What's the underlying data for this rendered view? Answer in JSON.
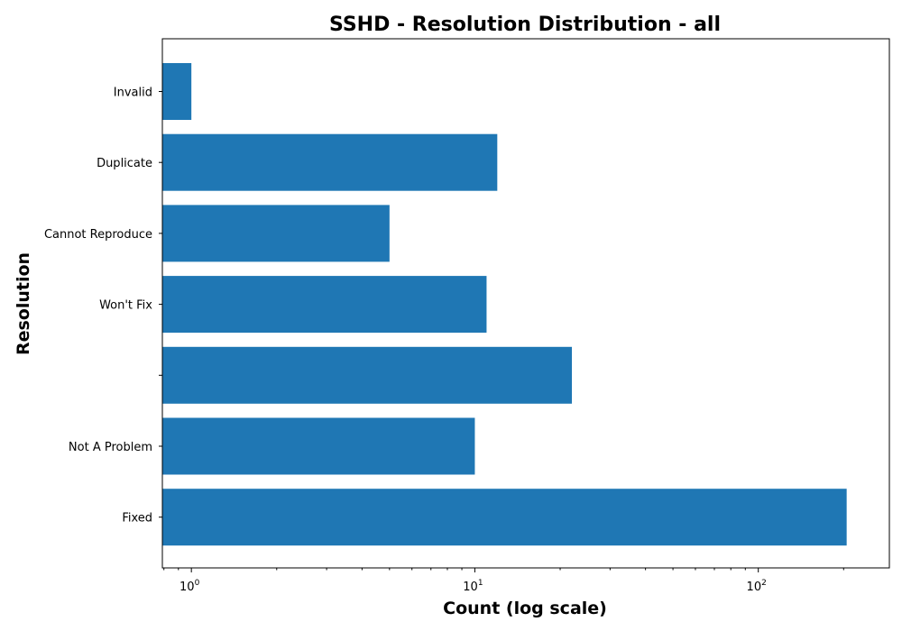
{
  "chart_data": {
    "type": "bar",
    "orientation": "horizontal",
    "title": "SSHD - Resolution Distribution - all",
    "xlabel": "Count (log scale)",
    "ylabel": "Resolution",
    "xscale": "log",
    "xlim": [
      0.79,
      290
    ],
    "x_ticks": [
      {
        "value": 1,
        "base": "10",
        "exp": "0"
      },
      {
        "value": 10,
        "base": "10",
        "exp": "1"
      },
      {
        "value": 100,
        "base": "10",
        "exp": "2"
      }
    ],
    "categories": [
      "Fixed",
      "Not A Problem",
      "",
      "Won't Fix",
      "Cannot Reproduce",
      "Duplicate",
      "Invalid"
    ],
    "values": [
      205,
      10,
      22,
      11,
      5,
      12,
      1
    ],
    "bar_color": "#1f77b4",
    "grid": false,
    "legend": false
  }
}
